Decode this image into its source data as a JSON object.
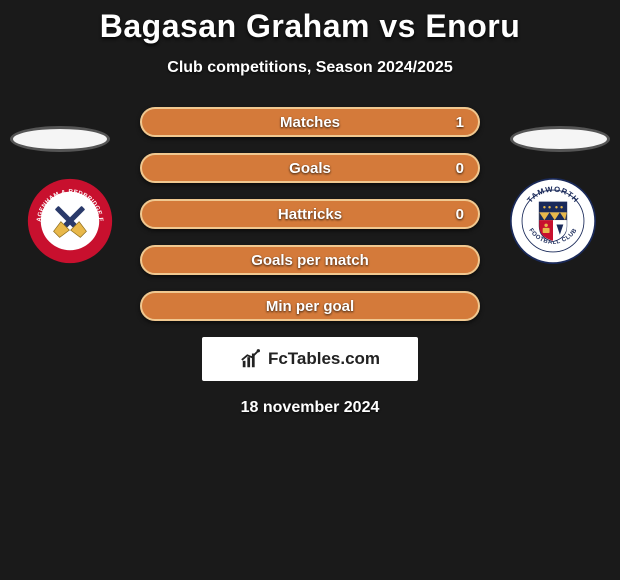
{
  "title": "Bagasan Graham vs Enoru",
  "subtitle": "Club competitions, Season 2024/2025",
  "date": "18 november 2024",
  "watermark_text": "FcTables.com",
  "colors": {
    "bar_fill": "#d47a3a",
    "bar_border": "#f0c890",
    "bar_secondary": "#4a5a8a",
    "bg": "#1a1a1a",
    "text": "#ffffff"
  },
  "stats": [
    {
      "label": "Matches",
      "value": "1",
      "fill_pct": 0
    },
    {
      "label": "Goals",
      "value": "0",
      "fill_pct": 0
    },
    {
      "label": "Hattricks",
      "value": "0",
      "fill_pct": 0
    },
    {
      "label": "Goals per match",
      "value": "",
      "fill_pct": 0
    },
    {
      "label": "Min per goal",
      "value": "",
      "fill_pct": 0
    }
  ],
  "crest_left": {
    "outer_ring": "#c8102e",
    "ring_text_color": "#ffffff",
    "inner_bg": "#ffffff",
    "ring_top": "DAGENHAM & REDBRIDGE FC",
    "year": "1992",
    "cross_color": "#e8b84a",
    "handle_color": "#2a3a6a"
  },
  "crest_right": {
    "outer_ring": "#ffffff",
    "ring_border": "#1a2a5a",
    "ring_text_color": "#1a2a5a",
    "ring_top": "TAMWORTH",
    "ring_bottom": "FOOTBALL CLUB",
    "shield_top": "#1a2a5a",
    "shield_mid": "#e8b84a",
    "shield_bottom_l": "#c8102e",
    "shield_bottom_r": "#ffffff"
  }
}
